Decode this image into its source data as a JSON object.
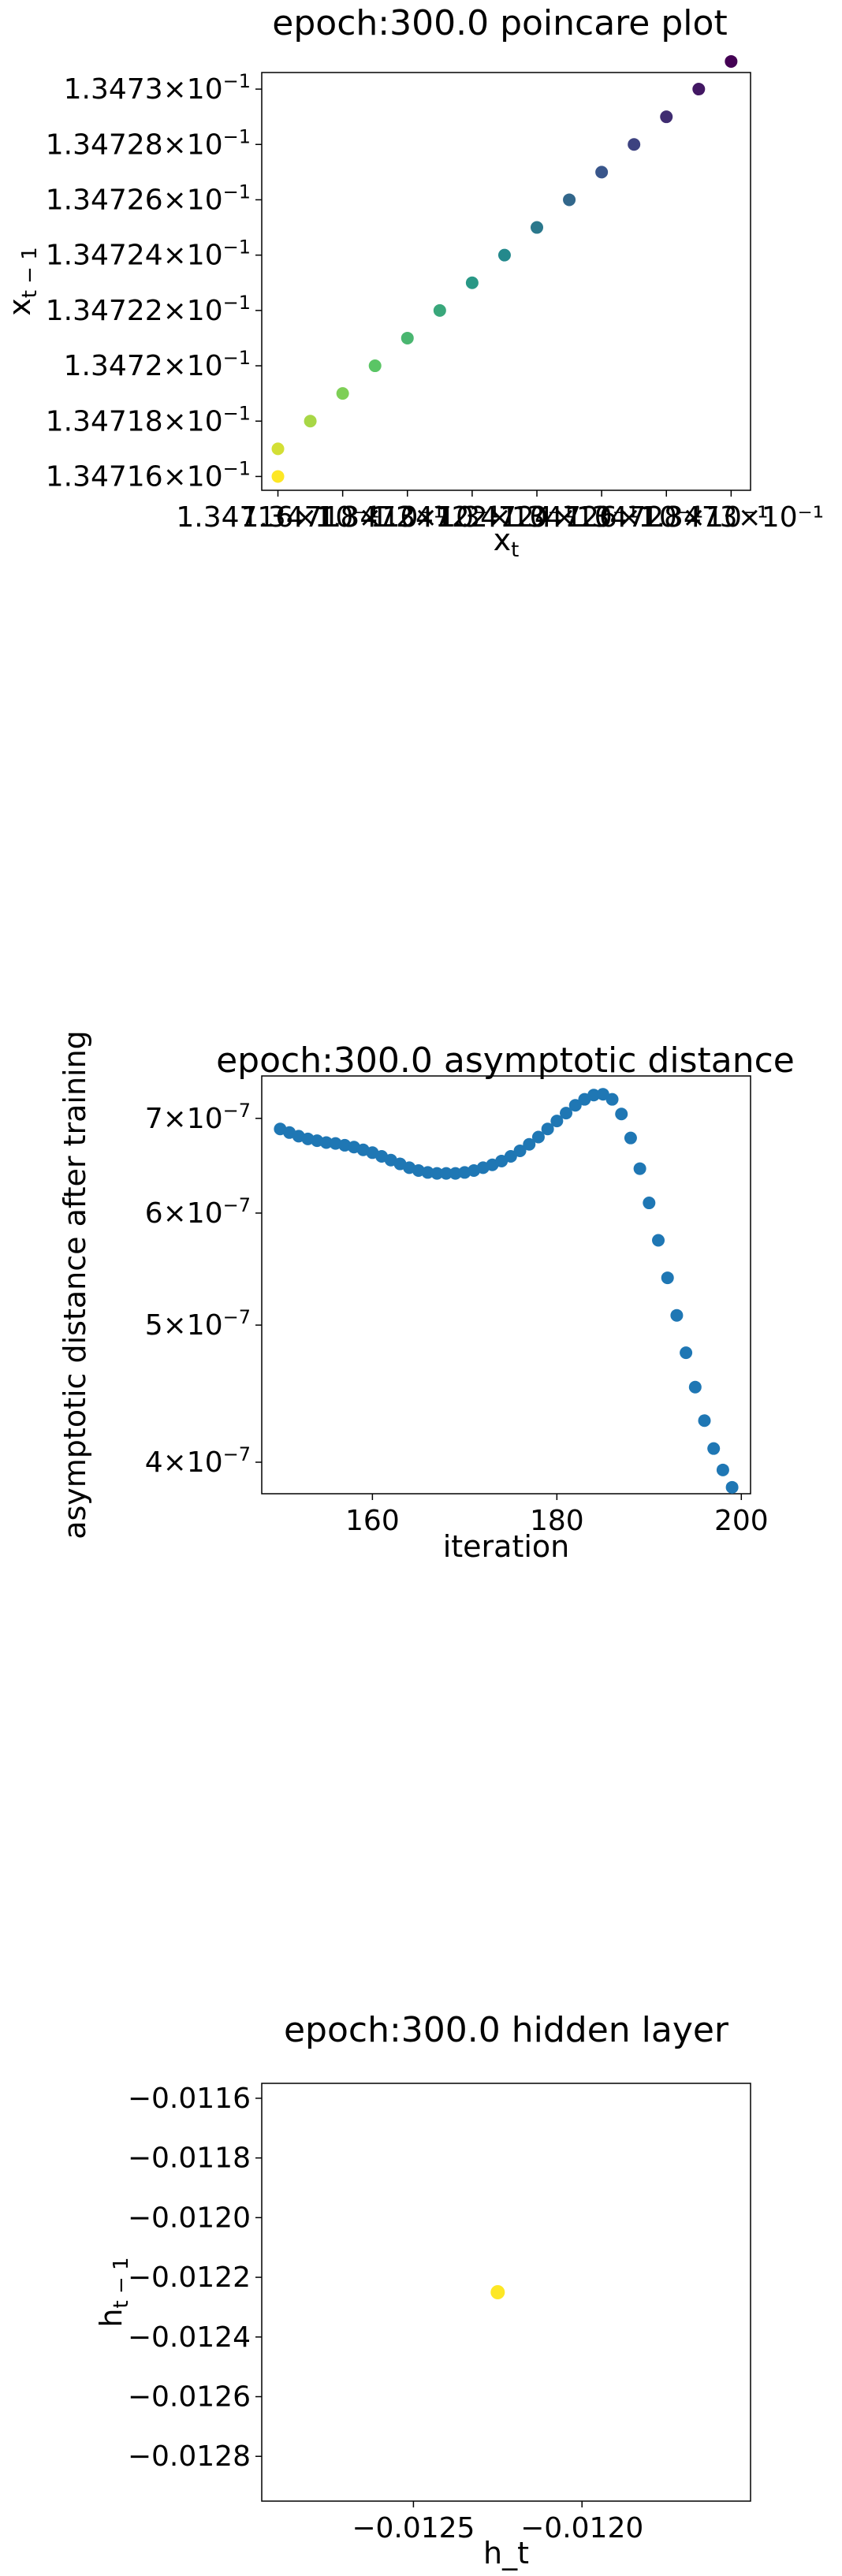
{
  "chart_data": [
    {
      "type": "scatter",
      "title": "epoch:300.0 poincare plot",
      "xlabel": "x_t",
      "ylabel": "x_{t-1}",
      "colormap": "viridis",
      "xlim": [
        0.1347155,
        0.1347306
      ],
      "ylim": [
        0.1347155,
        0.1347306
      ],
      "x_tick_labels": [
        "1.34716×10⁻¹",
        "1.34718×10⁻¹",
        "1.3472×10⁻¹",
        "1.34722×10⁻¹",
        "1.34724×10⁻¹",
        "1.34726×10⁻¹",
        "1.34728×10⁻¹",
        "1.3473×10⁻¹"
      ],
      "y_ticks": [
        {
          "value": 0.134716,
          "mantissa": "1.34716"
        },
        {
          "value": 0.134718,
          "mantissa": "1.34718"
        },
        {
          "value": 0.13472,
          "mantissa": "1.3472"
        },
        {
          "value": 0.134722,
          "mantissa": "1.34722"
        },
        {
          "value": 0.134724,
          "mantissa": "1.34724"
        },
        {
          "value": 0.134726,
          "mantissa": "1.34726"
        },
        {
          "value": 0.134728,
          "mantissa": "1.34728"
        },
        {
          "value": 0.13473,
          "mantissa": "1.3473"
        }
      ],
      "tick_exponent": "−10⁻¹",
      "points": [
        [
          0.13473,
          0.134731
        ],
        [
          0.134729,
          0.13473
        ],
        [
          0.134728,
          0.134729
        ],
        [
          0.134727,
          0.134728
        ],
        [
          0.134726,
          0.134727
        ],
        [
          0.134725,
          0.134726
        ],
        [
          0.134724,
          0.134725
        ],
        [
          0.134723,
          0.134724
        ],
        [
          0.134722,
          0.134723
        ],
        [
          0.134721,
          0.134722
        ],
        [
          0.13472,
          0.134721
        ],
        [
          0.134719,
          0.13472
        ],
        [
          0.134718,
          0.134719
        ],
        [
          0.134717,
          0.134718
        ],
        [
          0.134716,
          0.134717
        ],
        [
          0.134716,
          0.134716
        ]
      ]
    },
    {
      "type": "scatter",
      "title": "epoch:300.0 asymptotic distance",
      "xlabel": "iteration",
      "ylabel": "asymptotic distance after training",
      "y_scale": "log",
      "color": "#1f77b4",
      "xlim": [
        148,
        201
      ],
      "ylim": [
        3.8e-07,
        7.5e-07
      ],
      "x_ticks": [
        160,
        180,
        200
      ],
      "y_ticks": [
        {
          "value": 4e-07,
          "mantissa": "4"
        },
        {
          "value": 5e-07,
          "mantissa": "5"
        },
        {
          "value": 6e-07,
          "mantissa": "6"
        },
        {
          "value": 7e-07,
          "mantissa": "7"
        }
      ],
      "tick_exponent": "×10⁻⁷",
      "x": [
        150,
        151,
        152,
        153,
        154,
        155,
        156,
        157,
        158,
        159,
        160,
        161,
        162,
        163,
        164,
        165,
        166,
        167,
        168,
        169,
        170,
        171,
        172,
        173,
        174,
        175,
        176,
        177,
        178,
        179,
        180,
        181,
        182,
        183,
        184,
        185,
        186,
        187,
        188,
        189,
        190,
        191,
        192,
        193,
        194,
        195,
        196,
        197,
        198,
        199
      ],
      "y": [
        6.88e-07,
        6.84e-07,
        6.8e-07,
        6.77e-07,
        6.75e-07,
        6.73e-07,
        6.72e-07,
        6.7e-07,
        6.68e-07,
        6.65e-07,
        6.62e-07,
        6.58e-07,
        6.54e-07,
        6.5e-07,
        6.46e-07,
        6.43e-07,
        6.41e-07,
        6.4e-07,
        6.4e-07,
        6.4e-07,
        6.41e-07,
        6.43e-07,
        6.46e-07,
        6.49e-07,
        6.53e-07,
        6.58e-07,
        6.64e-07,
        6.71e-07,
        6.79e-07,
        6.88e-07,
        6.97e-07,
        7.06e-07,
        7.15e-07,
        7.22e-07,
        7.27e-07,
        7.28e-07,
        7.22e-07,
        7.05e-07,
        6.78e-07,
        6.45e-07,
        6.1e-07,
        5.74e-07,
        5.4e-07,
        5.08e-07,
        4.78e-07,
        4.52e-07,
        4.28e-07,
        4.09e-07,
        3.95e-07,
        3.84e-07
      ]
    },
    {
      "type": "scatter",
      "title": "epoch:300.0 hidden layer",
      "xlabel": "h_t",
      "ylabel": "h_{t-1}",
      "color": "#fde725",
      "xlim": [
        -0.01295,
        -0.0115
      ],
      "ylim": [
        -0.01295,
        -0.01155
      ],
      "x_ticks": [
        {
          "value": -0.0125,
          "label": "−0.0125"
        },
        {
          "value": -0.012,
          "label": "−0.0120"
        }
      ],
      "y_ticks": [
        {
          "value": -0.0116,
          "label": "−0.0116"
        },
        {
          "value": -0.0118,
          "label": "−0.0118"
        },
        {
          "value": -0.012,
          "label": "−0.0120"
        },
        {
          "value": -0.0122,
          "label": "−0.0122"
        },
        {
          "value": -0.0124,
          "label": "−0.0124"
        },
        {
          "value": -0.0126,
          "label": "−0.0126"
        },
        {
          "value": -0.0128,
          "label": "−0.0128"
        }
      ],
      "points": [
        [
          -0.01225,
          -0.01225
        ]
      ]
    }
  ]
}
